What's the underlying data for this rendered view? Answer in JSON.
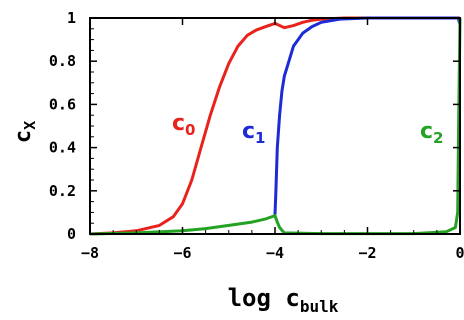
{
  "chart_data": {
    "type": "line",
    "xlabel": {
      "main": "log c",
      "sub": "bulk"
    },
    "ylabel": {
      "main": "c",
      "sub": "X"
    },
    "xlim": [
      -8,
      0
    ],
    "ylim": [
      0,
      1
    ],
    "xticks": [
      "-8",
      "-6",
      "-4",
      "-2",
      "0"
    ],
    "yticks": [
      "0",
      "0.2",
      "0.4",
      "0.6",
      "0.8",
      "1"
    ],
    "grid": false,
    "legend": "none (series labeled inline)",
    "series": [
      {
        "name": "c0",
        "label_main": "c",
        "label_sub": "0",
        "color": "#e8231c",
        "points": [
          [
            -8,
            0
          ],
          [
            -7.5,
            0.005
          ],
          [
            -7,
            0.015
          ],
          [
            -6.5,
            0.04
          ],
          [
            -6.2,
            0.08
          ],
          [
            -6,
            0.14
          ],
          [
            -5.8,
            0.25
          ],
          [
            -5.6,
            0.4
          ],
          [
            -5.4,
            0.55
          ],
          [
            -5.2,
            0.68
          ],
          [
            -5,
            0.79
          ],
          [
            -4.8,
            0.87
          ],
          [
            -4.6,
            0.92
          ],
          [
            -4.4,
            0.945
          ],
          [
            -4.2,
            0.96
          ],
          [
            -4,
            0.975
          ],
          [
            -3.8,
            0.955
          ],
          [
            -3.6,
            0.965
          ],
          [
            -3.4,
            0.98
          ],
          [
            -3.2,
            0.99
          ],
          [
            -3,
            0.995
          ],
          [
            -2.5,
            1
          ],
          [
            -1,
            1
          ],
          [
            0,
            1
          ]
        ]
      },
      {
        "name": "c1",
        "label_main": "c",
        "label_sub": "1",
        "color": "#1c2bd6",
        "points": [
          [
            -4,
            0.09
          ],
          [
            -3.98,
            0.2
          ],
          [
            -3.95,
            0.4
          ],
          [
            -3.9,
            0.55
          ],
          [
            -3.85,
            0.66
          ],
          [
            -3.8,
            0.73
          ],
          [
            -3.7,
            0.8
          ],
          [
            -3.6,
            0.87
          ],
          [
            -3.4,
            0.93
          ],
          [
            -3.2,
            0.96
          ],
          [
            -3,
            0.98
          ],
          [
            -2.6,
            0.995
          ],
          [
            -2,
            1
          ],
          [
            -0.04,
            1
          ],
          [
            0,
            0.97
          ]
        ]
      },
      {
        "name": "c2",
        "label_main": "c",
        "label_sub": "2",
        "color": "#24a224",
        "points": [
          [
            -8,
            0
          ],
          [
            -7,
            0.005
          ],
          [
            -6,
            0.015
          ],
          [
            -5.5,
            0.025
          ],
          [
            -5,
            0.04
          ],
          [
            -4.5,
            0.055
          ],
          [
            -4.2,
            0.07
          ],
          [
            -4,
            0.085
          ],
          [
            -3.95,
            0.055
          ],
          [
            -3.9,
            0.03
          ],
          [
            -3.8,
            0.005
          ],
          [
            -3,
            0.002
          ],
          [
            -1,
            0.002
          ],
          [
            -0.3,
            0.01
          ],
          [
            -0.1,
            0.03
          ],
          [
            -0.05,
            0.1
          ],
          [
            -0.03,
            0.5
          ],
          [
            0,
            1
          ]
        ]
      }
    ]
  }
}
